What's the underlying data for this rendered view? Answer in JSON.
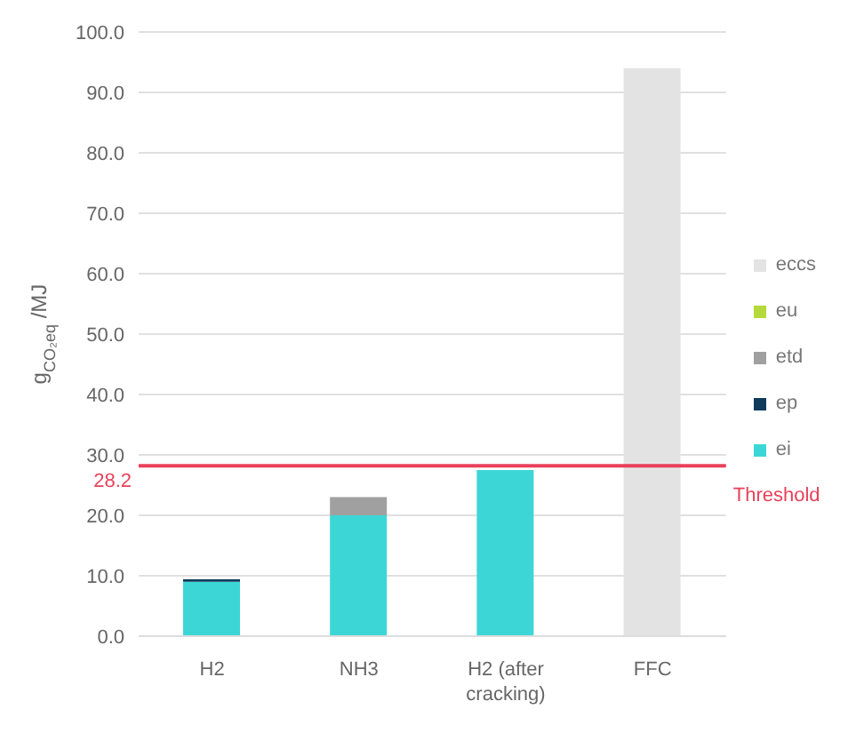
{
  "chart_data": {
    "type": "bar",
    "stacked": true,
    "ylabel": "g$_{CO₂eq}$/MJ",
    "categories": [
      "H2",
      "NH3",
      "H2 (after cracking)",
      "FFC"
    ],
    "series": [
      {
        "name": "ei",
        "color": "#3dd6d6",
        "values": [
          9.0,
          20.0,
          27.5,
          0
        ]
      },
      {
        "name": "ep",
        "color": "#0e3a5c",
        "values": [
          0.4,
          0,
          0,
          0
        ]
      },
      {
        "name": "etd",
        "color": "#a0a0a0",
        "values": [
          0,
          3.0,
          0,
          0
        ]
      },
      {
        "name": "eu",
        "color": "#b5d93a",
        "values": [
          0,
          0,
          0,
          0
        ]
      },
      {
        "name": "eccs",
        "color": "#e3e3e3",
        "values": [
          0,
          0,
          0,
          94.0
        ]
      }
    ],
    "ylim": [
      0,
      100
    ],
    "yticks": [
      {
        "value": 0,
        "label": "0.0"
      },
      {
        "value": 10,
        "label": "10.0"
      },
      {
        "value": 20,
        "label": "20.0"
      },
      {
        "value": 30,
        "label": "30.0"
      },
      {
        "value": 40,
        "label": "40.0"
      },
      {
        "value": 50,
        "label": "50.0"
      },
      {
        "value": 60,
        "label": "60.0"
      },
      {
        "value": 70,
        "label": "70.0"
      },
      {
        "value": 80,
        "label": "80.0"
      },
      {
        "value": 90,
        "label": "90.0"
      },
      {
        "value": 100,
        "label": "100.0"
      }
    ],
    "grid": "y",
    "legend": "right",
    "annotations": [
      "28.2"
    ],
    "ref_lines": [
      {
        "axis": "y",
        "value": 28.2,
        "label": "Threshold",
        "color": "#e8405a"
      }
    ]
  }
}
